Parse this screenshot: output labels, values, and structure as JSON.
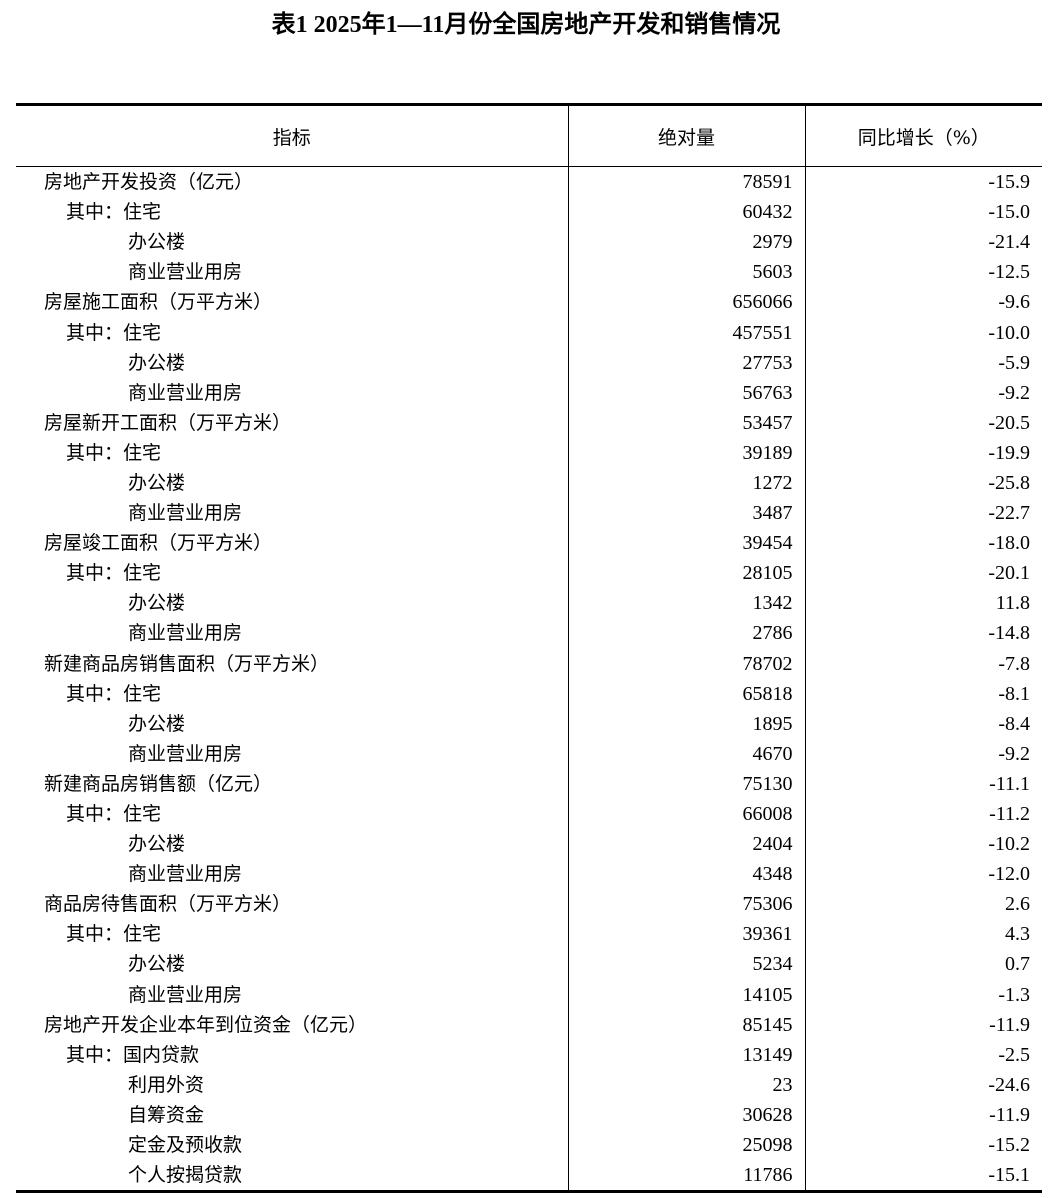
{
  "title": "表1 2025年1—11月份全国房地产开发和销售情况",
  "headers": [
    "指标",
    "绝对量",
    "同比增长（%）"
  ],
  "rows": [
    {
      "label": "房地产开发投资（亿元）",
      "value": "78591",
      "yoy": "-15.9",
      "level": 0
    },
    {
      "label": "其中：住宅",
      "value": "60432",
      "yoy": "-15.0",
      "level": 1
    },
    {
      "label": "办公楼",
      "value": "2979",
      "yoy": "-21.4",
      "level": 2
    },
    {
      "label": "商业营业用房",
      "value": "5603",
      "yoy": "-12.5",
      "level": 2
    },
    {
      "label": "房屋施工面积（万平方米）",
      "value": "656066",
      "yoy": "-9.6",
      "level": 0
    },
    {
      "label": "其中：住宅",
      "value": "457551",
      "yoy": "-10.0",
      "level": 1
    },
    {
      "label": "办公楼",
      "value": "27753",
      "yoy": "-5.9",
      "level": 2
    },
    {
      "label": "商业营业用房",
      "value": "56763",
      "yoy": "-9.2",
      "level": 2
    },
    {
      "label": "房屋新开工面积（万平方米）",
      "value": "53457",
      "yoy": "-20.5",
      "level": 0
    },
    {
      "label": "其中：住宅",
      "value": "39189",
      "yoy": "-19.9",
      "level": 1
    },
    {
      "label": "办公楼",
      "value": "1272",
      "yoy": "-25.8",
      "level": 2
    },
    {
      "label": "商业营业用房",
      "value": "3487",
      "yoy": "-22.7",
      "level": 2
    },
    {
      "label": "房屋竣工面积（万平方米）",
      "value": "39454",
      "yoy": "-18.0",
      "level": 0
    },
    {
      "label": "其中：住宅",
      "value": "28105",
      "yoy": "-20.1",
      "level": 1
    },
    {
      "label": "办公楼",
      "value": "1342",
      "yoy": "11.8",
      "level": 2
    },
    {
      "label": "商业营业用房",
      "value": "2786",
      "yoy": "-14.8",
      "level": 2
    },
    {
      "label": "新建商品房销售面积（万平方米）",
      "value": "78702",
      "yoy": "-7.8",
      "level": 0
    },
    {
      "label": "其中：住宅",
      "value": "65818",
      "yoy": "-8.1",
      "level": 1
    },
    {
      "label": "办公楼",
      "value": "1895",
      "yoy": "-8.4",
      "level": 2
    },
    {
      "label": "商业营业用房",
      "value": "4670",
      "yoy": "-9.2",
      "level": 2
    },
    {
      "label": "新建商品房销售额（亿元）",
      "value": "75130",
      "yoy": "-11.1",
      "level": 0
    },
    {
      "label": "其中：住宅",
      "value": "66008",
      "yoy": "-11.2",
      "level": 1
    },
    {
      "label": "办公楼",
      "value": "2404",
      "yoy": "-10.2",
      "level": 2
    },
    {
      "label": "商业营业用房",
      "value": "4348",
      "yoy": "-12.0",
      "level": 2
    },
    {
      "label": "商品房待售面积（万平方米）",
      "value": "75306",
      "yoy": "2.6",
      "level": 0
    },
    {
      "label": "其中：住宅",
      "value": "39361",
      "yoy": "4.3",
      "level": 1
    },
    {
      "label": "办公楼",
      "value": "5234",
      "yoy": "0.7",
      "level": 2
    },
    {
      "label": "商业营业用房",
      "value": "14105",
      "yoy": "-1.3",
      "level": 2
    },
    {
      "label": "房地产开发企业本年到位资金（亿元）",
      "value": "85145",
      "yoy": "-11.9",
      "level": 0
    },
    {
      "label": "其中：国内贷款",
      "value": "13149",
      "yoy": "-2.5",
      "level": 1
    },
    {
      "label": "利用外资",
      "value": "23",
      "yoy": "-24.6",
      "level": 2
    },
    {
      "label": "自筹资金",
      "value": "30628",
      "yoy": "-11.9",
      "level": 2
    },
    {
      "label": "定金及预收款",
      "value": "25098",
      "yoy": "-15.2",
      "level": 2
    },
    {
      "label": "个人按揭贷款",
      "value": "11786",
      "yoy": "-15.1",
      "level": 2
    }
  ]
}
